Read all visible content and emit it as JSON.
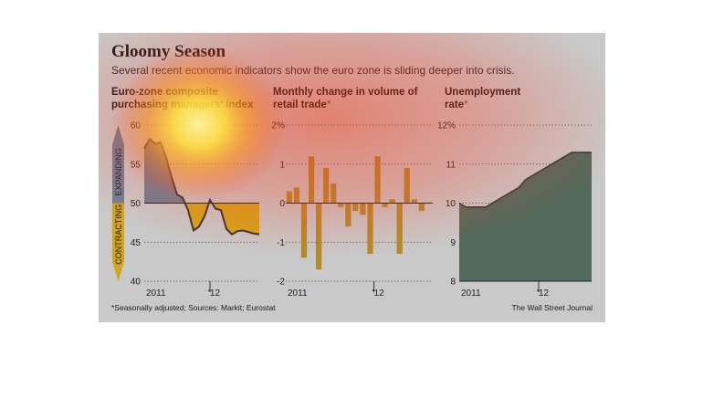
{
  "header": {
    "title": "Gloomy Season",
    "subtitle": "Several recent economic indicators show the euro zone is sliding deeper into crisis."
  },
  "footer": {
    "note": "*Seasonally adjusted; Sources: Markit; Eurostat",
    "source": "The Wall Street Journal"
  },
  "colors": {
    "pmi_above": "#6f7f95",
    "pmi_below": "#d2a51c",
    "retail": "#b38a2c",
    "unemployment": "#536a5c",
    "line": "#333333"
  },
  "chart_data": [
    {
      "type": "line",
      "title": "Euro-zone composite purchasing managers' index",
      "baseline": 50,
      "ylim": [
        40,
        60
      ],
      "yticks": [
        "40",
        "45",
        "50",
        "55",
        "60"
      ],
      "xticks": [
        "2011",
        "'12"
      ],
      "band_labels": {
        "above": "EXPANDING",
        "below": "CONTRACTING"
      },
      "x": [
        "2011-01",
        "2011-02",
        "2011-03",
        "2011-04",
        "2011-05",
        "2011-06",
        "2011-07",
        "2011-08",
        "2011-09",
        "2011-10",
        "2011-11",
        "2011-12",
        "2012-01",
        "2012-02",
        "2012-03",
        "2012-04",
        "2012-05",
        "2012-06",
        "2012-07",
        "2012-08",
        "2012-09",
        "2012-10"
      ],
      "values": [
        57.0,
        58.2,
        57.6,
        57.8,
        55.8,
        53.3,
        51.1,
        50.7,
        49.1,
        46.5,
        47.0,
        48.3,
        50.4,
        49.3,
        49.1,
        46.7,
        46.0,
        46.4,
        46.5,
        46.3,
        46.1,
        46.0
      ]
    },
    {
      "type": "bar",
      "title": "Monthly change in volume of retail trade",
      "title_mark": "*",
      "ylim": [
        -2,
        2
      ],
      "yticks": [
        "-2",
        "-1",
        "0",
        "1",
        "2%"
      ],
      "xticks": [
        "2011",
        "'12"
      ],
      "categories": [
        "2011-01",
        "2011-02",
        "2011-03",
        "2011-04",
        "2011-05",
        "2011-06",
        "2011-07",
        "2011-08",
        "2011-09",
        "2011-10",
        "2011-11",
        "2011-12",
        "2012-01",
        "2012-02",
        "2012-03",
        "2012-04",
        "2012-05",
        "2012-06",
        "2012-07",
        "2012-08"
      ],
      "values": [
        0.3,
        0.4,
        -1.4,
        1.2,
        -1.7,
        0.9,
        0.5,
        -0.1,
        -0.6,
        -0.2,
        -0.3,
        -1.3,
        1.2,
        -0.1,
        0.1,
        -1.3,
        0.9,
        0.1,
        -0.2,
        0.0
      ]
    },
    {
      "type": "area",
      "title": "Unemployment rate",
      "title_mark": "*",
      "ylim": [
        8,
        12
      ],
      "yticks": [
        "8",
        "9",
        "10",
        "11",
        "12%"
      ],
      "xticks": [
        "2011",
        "'12"
      ],
      "x": [
        "2011-01",
        "2011-02",
        "2011-03",
        "2011-04",
        "2011-05",
        "2011-06",
        "2011-07",
        "2011-08",
        "2011-09",
        "2011-10",
        "2011-11",
        "2011-12",
        "2012-01",
        "2012-02",
        "2012-03",
        "2012-04",
        "2012-05",
        "2012-06",
        "2012-07",
        "2012-08",
        "2012-09"
      ],
      "values": [
        10.0,
        9.9,
        9.9,
        9.9,
        9.9,
        10.0,
        10.1,
        10.2,
        10.3,
        10.4,
        10.6,
        10.7,
        10.8,
        10.9,
        11.0,
        11.1,
        11.2,
        11.3,
        11.3,
        11.3,
        11.3
      ]
    }
  ]
}
